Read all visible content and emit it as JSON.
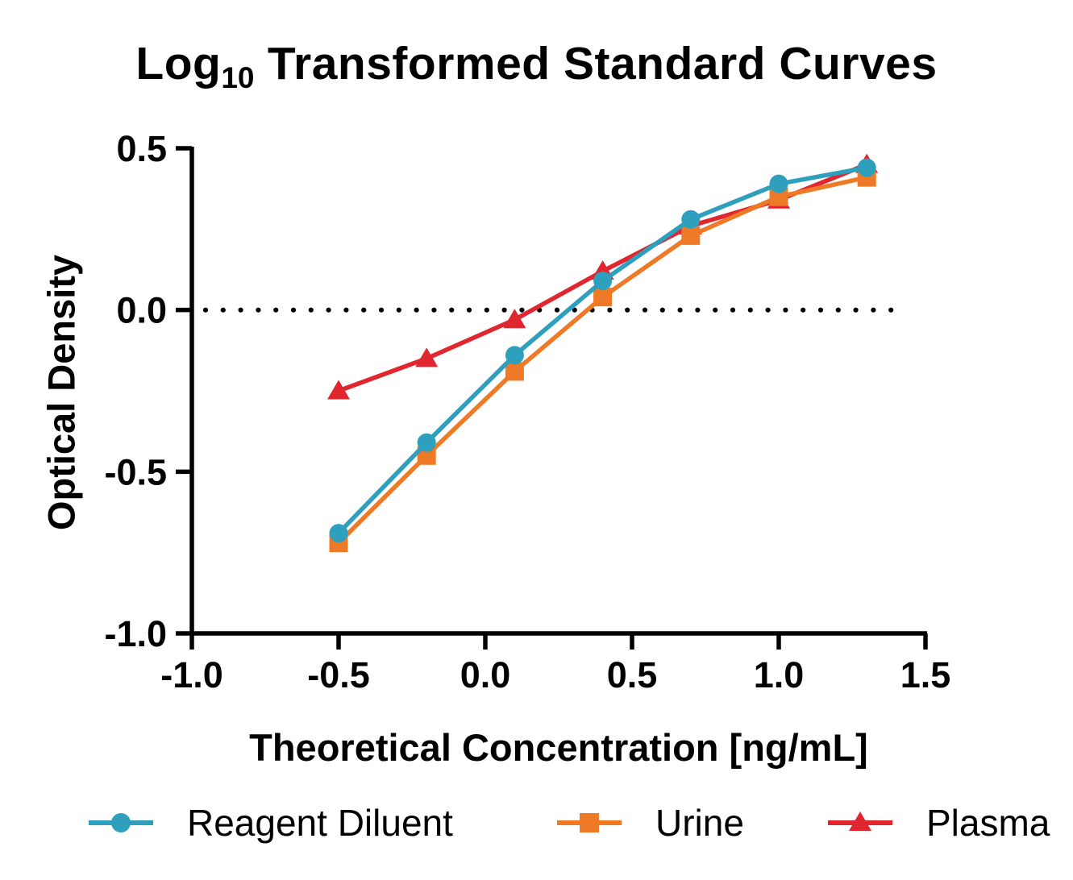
{
  "title": {
    "prefix": "Log",
    "subscript": "10",
    "suffix": " Transformed Standard Curves"
  },
  "axes": {
    "x": {
      "label": "Theoretical Concentration [ng/mL]",
      "range": [
        -1.0,
        1.5
      ],
      "ticks": [
        -1.0,
        -0.5,
        0.0,
        0.5,
        1.0,
        1.5
      ],
      "tick_labels": [
        "-1.0",
        "-0.5",
        "0.0",
        "0.5",
        "1.0",
        "1.5"
      ]
    },
    "y": {
      "label": "Optical Density",
      "range": [
        -1.0,
        0.5
      ],
      "ticks": [
        0.5,
        0.0,
        -0.5,
        -1.0
      ],
      "tick_labels": [
        "0.5",
        "0.0",
        "-0.5",
        "-1.0"
      ]
    }
  },
  "chart_data": {
    "type": "line",
    "title": "Log10 Transformed Standard Curves",
    "xlabel": "Theoretical Concentration [ng/mL]",
    "ylabel": "Optical Density",
    "xlim": [
      -1.0,
      1.5
    ],
    "ylim": [
      -1.0,
      0.5
    ],
    "grid": false,
    "legend_position": "bottom",
    "reference_line_y": 0.0,
    "reference_line_style": "dotted",
    "x": [
      -0.5,
      -0.2,
      0.1,
      0.4,
      0.7,
      1.0,
      1.3
    ],
    "series": [
      {
        "name": "Reagent Diluent",
        "marker": "circle",
        "color": "#2F9FBE",
        "values": [
          -0.69,
          -0.41,
          -0.14,
          0.09,
          0.28,
          0.39,
          0.44
        ]
      },
      {
        "name": "Urine",
        "marker": "square",
        "color": "#EE7A27",
        "values": [
          -0.72,
          -0.45,
          -0.19,
          0.04,
          0.23,
          0.35,
          0.41
        ]
      },
      {
        "name": "Plasma",
        "marker": "triangle",
        "color": "#E0262F",
        "values": [
          -0.25,
          -0.15,
          -0.03,
          0.12,
          0.26,
          0.34,
          0.45
        ]
      }
    ]
  },
  "colors": {
    "axis": "#000000",
    "reference_line": "#000000",
    "background": "#FFFFFF"
  }
}
